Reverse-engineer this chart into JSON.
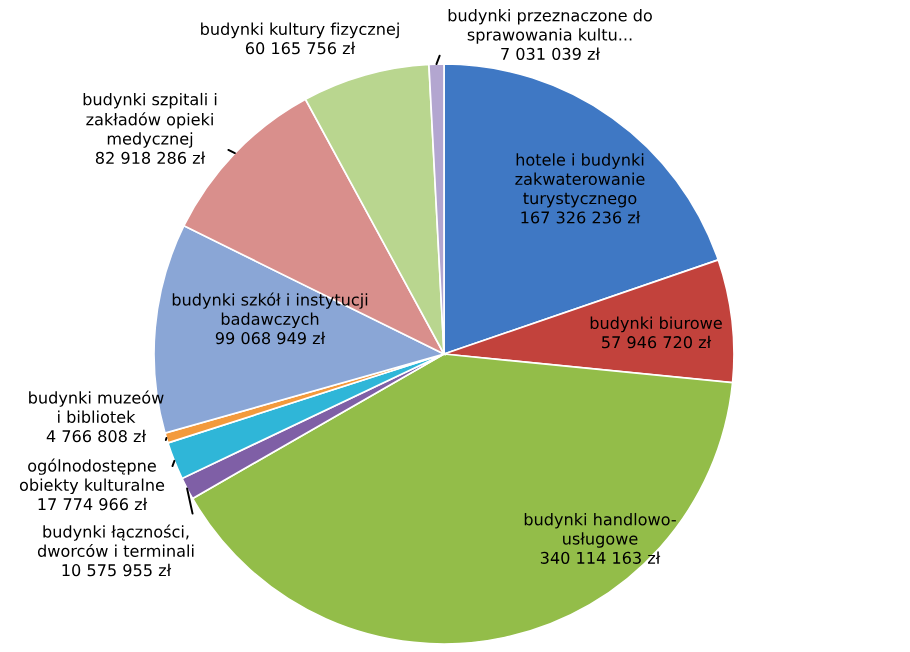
{
  "chart_data": {
    "type": "pie",
    "categories": [
      "hotele i budynki zakwaterowanie turystycznego",
      "budynki biurowe",
      "budynki handlowo-usługowe",
      "budynki łączności, dworców i terminali",
      "ogólnodostępne obiekty kulturalne",
      "budynki muzeów i bibliotek",
      "budynki szkół i instytucji badawczych",
      "budynki szpitali i zakładów opieki medycznej",
      "budynki kultury fizycznej",
      "budynki przeznaczone do sprawowania kultu..."
    ],
    "values": [
      167326236,
      57946720,
      340114163,
      10575955,
      17774966,
      4766808,
      99068949,
      82918286,
      60165756,
      7031039
    ],
    "colors": [
      "#3f78c4",
      "#c2423c",
      "#93bd49",
      "#7f5fa6",
      "#2fb6d8",
      "#f39a3c",
      "#8aa6d6",
      "#d98f8c",
      "#b9d68f",
      "#b3a6d0"
    ],
    "value_labels": [
      "167 326 236 zł",
      "57 946 720 zł",
      "340 114 163 zł",
      "10 575 955 zł",
      "17 774 966 zł",
      "4 766 808 zł",
      "99 068 949 zł",
      "82 918 286 zł",
      "60 165 756 zł",
      "7 031 039 zł"
    ]
  }
}
